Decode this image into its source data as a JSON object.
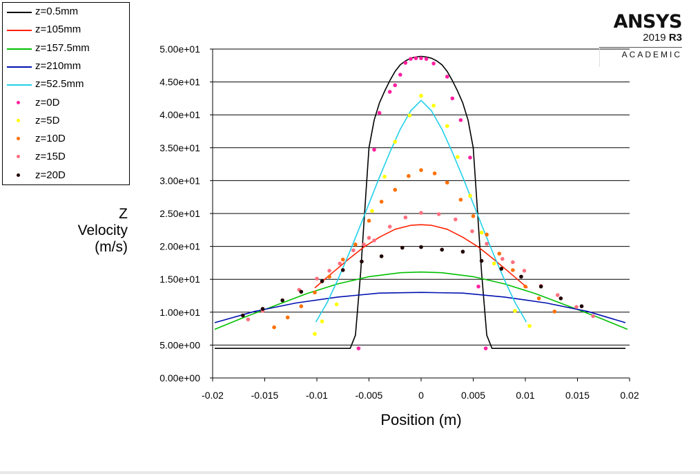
{
  "chart_data": {
    "type": "line",
    "title": "",
    "xlabel": "Position (m)",
    "ylabel": [
      "Z",
      "Velocity",
      "(m/s)"
    ],
    "xlim": [
      -0.02,
      0.02
    ],
    "ylim": [
      0,
      50
    ],
    "x_ticks": [
      -0.02,
      -0.015,
      -0.01,
      -0.005,
      0,
      0.005,
      0.01,
      0.015,
      0.02
    ],
    "x_tick_labels": [
      "-0.02",
      "-0.015",
      "-0.01",
      "-0.005",
      "0",
      "0.005",
      "0.01",
      "0.015",
      "0.02"
    ],
    "y_ticks": [
      0,
      5,
      10,
      15,
      20,
      25,
      30,
      35,
      40,
      45,
      50
    ],
    "y_tick_labels": [
      "0.00e+00",
      "5.00e+00",
      "1.00e+01",
      "1.50e+01",
      "2.00e+01",
      "2.50e+01",
      "3.00e+01",
      "3.50e+01",
      "4.00e+01",
      "4.50e+01",
      "5.00e+01"
    ],
    "grid": "horizontal",
    "legend_position": "top-left",
    "series": [
      {
        "name": "z=0.5mm",
        "style": "line",
        "color": "#000000",
        "x": [
          -0.0198,
          -0.0068,
          -0.0063,
          -0.0058,
          -0.0053,
          -0.005,
          -0.0045,
          -0.004,
          -0.0035,
          -0.003,
          -0.0025,
          -0.002,
          -0.0015,
          -0.001,
          -0.0005,
          0,
          0.0005,
          0.001,
          0.0015,
          0.002,
          0.0025,
          0.003,
          0.0035,
          0.004,
          0.0045,
          0.005,
          0.0053,
          0.0058,
          0.0063,
          0.0068,
          0.0196
        ],
        "y": [
          4.5,
          4.5,
          6.5,
          16,
          28,
          35,
          39.2,
          41.8,
          43.6,
          45.2,
          46.6,
          47.6,
          48.2,
          48.6,
          48.8,
          48.9,
          48.8,
          48.6,
          48.2,
          47.6,
          46.6,
          45.2,
          43.6,
          41.8,
          39.2,
          35,
          28,
          16,
          6.5,
          4.5,
          4.5
        ]
      },
      {
        "name": "z=105mm",
        "style": "line",
        "color": "#ff2000",
        "x": [
          -0.0102,
          -0.0085,
          -0.007,
          -0.0055,
          -0.004,
          -0.0025,
          -0.001,
          0,
          0.001,
          0.0025,
          0.004,
          0.0055,
          0.007,
          0.0085,
          0.0102
        ],
        "y": [
          13.7,
          16.0,
          18.0,
          19.9,
          21.4,
          22.6,
          23.2,
          23.3,
          23.2,
          22.6,
          21.4,
          19.9,
          18.0,
          16.0,
          13.7
        ]
      },
      {
        "name": "z=157.5mm",
        "style": "line",
        "color": "#00c000",
        "x": [
          -0.0198,
          -0.017,
          -0.014,
          -0.011,
          -0.008,
          -0.005,
          -0.002,
          0,
          0.002,
          0.005,
          0.008,
          0.011,
          0.014,
          0.017,
          0.0198
        ],
        "y": [
          7.4,
          9.2,
          11.0,
          12.8,
          14.3,
          15.4,
          16.0,
          16.1,
          16.0,
          15.4,
          14.3,
          12.8,
          11.0,
          9.2,
          7.4
        ]
      },
      {
        "name": "z=210mm",
        "style": "line",
        "color": "#0010b0",
        "x": [
          -0.0198,
          -0.016,
          -0.012,
          -0.008,
          -0.004,
          0,
          0.004,
          0.008,
          0.012,
          0.016,
          0.0196
        ],
        "y": [
          8.4,
          10.1,
          11.4,
          12.3,
          12.9,
          13.0,
          12.9,
          12.3,
          11.4,
          10.1,
          8.4
        ]
      },
      {
        "name": "z=52.5mm",
        "style": "line",
        "color": "#20d0e8",
        "x": [
          -0.0101,
          -0.009,
          -0.008,
          -0.007,
          -0.006,
          -0.005,
          -0.004,
          -0.003,
          -0.002,
          -0.001,
          0,
          0.001,
          0.002,
          0.003,
          0.004,
          0.005,
          0.006,
          0.007,
          0.008,
          0.009,
          0.0101
        ],
        "y": [
          8.5,
          11.5,
          14.9,
          18.6,
          22.5,
          26.5,
          30.5,
          34.3,
          37.8,
          40.6,
          42.2,
          40.6,
          37.8,
          34.3,
          30.5,
          26.5,
          22.5,
          18.6,
          14.9,
          11.5,
          8.5
        ]
      },
      {
        "name": "z=0D",
        "style": "points",
        "color": "#ff20a0",
        "x": [
          -0.006,
          -0.0045,
          -0.004,
          -0.003,
          -0.0025,
          -0.002,
          -0.0015,
          -0.001,
          -0.0005,
          0,
          0.0005,
          0.0012,
          0.0025,
          0.003,
          0.0038,
          0.0047,
          0.0055,
          0.0062
        ],
        "y": [
          4.5,
          34.7,
          40.3,
          43.5,
          44.5,
          46.1,
          47.9,
          48.5,
          48.6,
          48.6,
          48.5,
          47.8,
          45.8,
          42.5,
          39.2,
          33.5,
          13.9,
          4.5
        ]
      },
      {
        "name": "z=5D",
        "style": "points",
        "color": "#ffff00",
        "x": [
          -0.0102,
          -0.0095,
          -0.0081,
          -0.0047,
          -0.0035,
          -0.0025,
          -0.0011,
          0,
          0.0012,
          0.0025,
          0.0035,
          0.0047,
          0.0058,
          0.007,
          0.009,
          0.0104
        ],
        "y": [
          6.7,
          8.6,
          11.2,
          25.4,
          30.6,
          35.9,
          39.9,
          42.9,
          41.4,
          38.3,
          33.6,
          27.7,
          22.1,
          17.4,
          10.2,
          7.9
        ]
      },
      {
        "name": "z=10D",
        "style": "points",
        "color": "#ff7000",
        "x": [
          -0.0141,
          -0.0128,
          -0.0115,
          -0.0102,
          -0.0088,
          -0.0075,
          -0.0063,
          -0.005,
          -0.0038,
          -0.0025,
          -0.0012,
          0,
          0.0013,
          0.0025,
          0.0038,
          0.005,
          0.0063,
          0.0075,
          0.0088,
          0.01,
          0.0113,
          0.0128
        ],
        "y": [
          7.7,
          9.2,
          10.9,
          13.0,
          15.4,
          18.0,
          20.3,
          23.9,
          26.8,
          28.6,
          30.7,
          31.6,
          31.1,
          29.7,
          27.1,
          24.6,
          21.8,
          18.9,
          16.4,
          13.9,
          12.1,
          10.1
        ]
      },
      {
        "name": "z=15D",
        "style": "points",
        "color": "#ff7080",
        "x": [
          -0.0166,
          -0.0152,
          -0.0117,
          -0.01,
          -0.0088,
          -0.0078,
          -0.0065,
          -0.0055,
          -0.005,
          -0.0045,
          -0.003,
          -0.0015,
          0,
          0.0017,
          0.0033,
          0.0049,
          0.0063,
          0.0078,
          0.0088,
          0.0099,
          0.0115,
          0.0131,
          0.0149,
          0.0165
        ],
        "y": [
          8.9,
          10.2,
          13.4,
          15.1,
          16.3,
          17.4,
          19.4,
          20.3,
          21.3,
          20.9,
          23.0,
          24.4,
          25.1,
          24.9,
          24.1,
          22.3,
          20.4,
          18.1,
          17.6,
          16.3,
          14.0,
          12.6,
          10.8,
          9.4
        ]
      },
      {
        "name": "z=20D",
        "style": "points",
        "color": "#200000",
        "x": [
          -0.0171,
          -0.0152,
          -0.0133,
          -0.0115,
          -0.0095,
          -0.0075,
          -0.0057,
          -0.0038,
          -0.0018,
          0,
          0.002,
          0.004,
          0.0058,
          0.0077,
          0.0096,
          0.0115,
          0.0134,
          0.0154
        ],
        "y": [
          9.5,
          10.5,
          11.8,
          13.1,
          14.7,
          16.4,
          17.7,
          18.5,
          19.8,
          19.9,
          19.5,
          19.2,
          17.8,
          16.6,
          15.4,
          13.9,
          12.1,
          10.9
        ]
      }
    ]
  },
  "branding": {
    "name": "ANSYS",
    "version_prefix": "2019",
    "version_suffix": "R3",
    "edition": "ACADEMIC"
  }
}
